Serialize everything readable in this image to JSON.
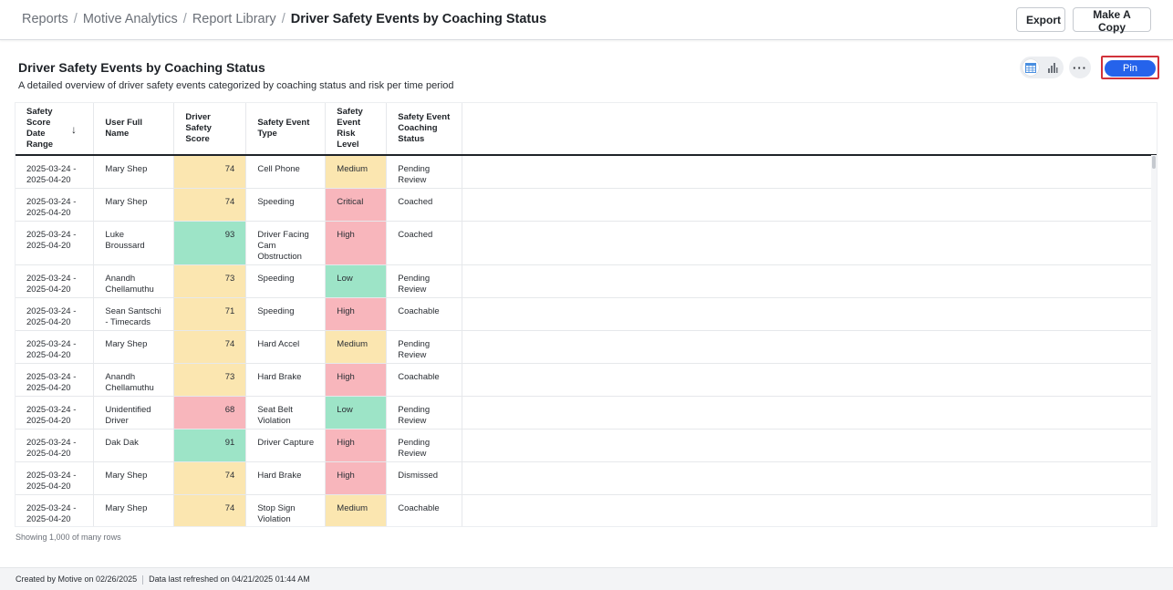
{
  "breadcrumb": [
    "Reports",
    "Motive Analytics",
    "Report Library",
    "Driver Safety Events by Coaching Status"
  ],
  "actions": {
    "export": "Export",
    "make_copy": "Make A Copy",
    "pin": "Pin"
  },
  "report": {
    "title": "Driver Safety Events by Coaching Status",
    "description": "A detailed overview of driver safety events categorized by coaching status and risk per time period"
  },
  "view_toggle": {
    "table_icon": "table-view-icon",
    "chart_icon": "bar-chart-icon",
    "active": "table"
  },
  "more_icon": "more-horizontal-icon",
  "colors": {
    "yellow": "#fbe6b0",
    "green": "#9de4c7",
    "red": "#f8b6bc",
    "pin_blue": "#2563eb",
    "highlight_border": "#d1323a"
  },
  "table": {
    "columns": [
      {
        "label": "Safety Score Date Range",
        "lines": [
          "Safety",
          "Score",
          "Date",
          "Range"
        ],
        "sorted": "desc"
      },
      {
        "label": "User Full Name",
        "lines": [
          "User Full Name"
        ]
      },
      {
        "label": "Driver Safety Score",
        "lines": [
          "Driver",
          "Safety Score"
        ]
      },
      {
        "label": "Safety Event Type",
        "lines": [
          "Safety Event",
          "Type"
        ]
      },
      {
        "label": "Safety Event Risk Level",
        "lines": [
          "Safety",
          "Event",
          "Risk Level"
        ]
      },
      {
        "label": "Safety Event Coaching Status",
        "lines": [
          "Safety Event",
          "Coaching",
          "Status"
        ]
      }
    ],
    "rows": [
      {
        "date": [
          "2025-03-24 -",
          "2025-04-20"
        ],
        "name": [
          "Mary Shep"
        ],
        "score": "74",
        "score_color": "yellow",
        "event": [
          "Cell Phone"
        ],
        "risk": "Medium",
        "risk_color": "yellow",
        "status": [
          "Pending",
          "Review"
        ]
      },
      {
        "date": [
          "2025-03-24 -",
          "2025-04-20"
        ],
        "name": [
          "Mary Shep"
        ],
        "score": "74",
        "score_color": "yellow",
        "event": [
          "Speeding"
        ],
        "risk": "Critical",
        "risk_color": "red",
        "status": [
          "Coached"
        ]
      },
      {
        "date": [
          "2025-03-24 -",
          "2025-04-20"
        ],
        "name": [
          "Luke",
          "Broussard"
        ],
        "score": "93",
        "score_color": "green",
        "event": [
          "Driver Facing",
          "Cam",
          "Obstruction"
        ],
        "risk": "High",
        "risk_color": "red",
        "status": [
          "Coached"
        ]
      },
      {
        "date": [
          "2025-03-24 -",
          "2025-04-20"
        ],
        "name": [
          "Anandh",
          "Chellamuthu"
        ],
        "score": "73",
        "score_color": "yellow",
        "event": [
          "Speeding"
        ],
        "risk": "Low",
        "risk_color": "green",
        "status": [
          "Pending",
          "Review"
        ]
      },
      {
        "date": [
          "2025-03-24 -",
          "2025-04-20"
        ],
        "name": [
          "Sean Santschi",
          "- Timecards"
        ],
        "score": "71",
        "score_color": "yellow",
        "event": [
          "Speeding"
        ],
        "risk": "High",
        "risk_color": "red",
        "status": [
          "Coachable"
        ]
      },
      {
        "date": [
          "2025-03-24 -",
          "2025-04-20"
        ],
        "name": [
          "Mary Shep"
        ],
        "score": "74",
        "score_color": "yellow",
        "event": [
          "Hard Accel"
        ],
        "risk": "Medium",
        "risk_color": "yellow",
        "status": [
          "Pending",
          "Review"
        ]
      },
      {
        "date": [
          "2025-03-24 -",
          "2025-04-20"
        ],
        "name": [
          "Anandh",
          "Chellamuthu"
        ],
        "score": "73",
        "score_color": "yellow",
        "event": [
          "Hard Brake"
        ],
        "risk": "High",
        "risk_color": "red",
        "status": [
          "Coachable"
        ]
      },
      {
        "date": [
          "2025-03-24 -",
          "2025-04-20"
        ],
        "name": [
          "Unidentified",
          "Driver"
        ],
        "score": "68",
        "score_color": "red",
        "event": [
          "Seat Belt",
          "Violation"
        ],
        "risk": "Low",
        "risk_color": "green",
        "status": [
          "Pending",
          "Review"
        ]
      },
      {
        "date": [
          "2025-03-24 -",
          "2025-04-20"
        ],
        "name": [
          "Dak Dak"
        ],
        "score": "91",
        "score_color": "green",
        "event": [
          "Driver Capture"
        ],
        "risk": "High",
        "risk_color": "red",
        "status": [
          "Pending",
          "Review"
        ]
      },
      {
        "date": [
          "2025-03-24 -",
          "2025-04-20"
        ],
        "name": [
          "Mary Shep"
        ],
        "score": "74",
        "score_color": "yellow",
        "event": [
          "Hard Brake"
        ],
        "risk": "High",
        "risk_color": "red",
        "status": [
          "Dismissed"
        ]
      },
      {
        "date": [
          "2025-03-24 -",
          "2025-04-20"
        ],
        "name": [
          "Mary Shep"
        ],
        "score": "74",
        "score_color": "yellow",
        "event": [
          "Stop Sign",
          "Violation"
        ],
        "risk": "Medium",
        "risk_color": "yellow",
        "status": [
          "Coachable"
        ]
      }
    ]
  },
  "row_count_text": "Showing 1,000 of many rows",
  "footer": {
    "created": "Created by Motive on 02/26/2025",
    "refreshed": "Data last refreshed on 04/21/2025 01:44 AM"
  }
}
